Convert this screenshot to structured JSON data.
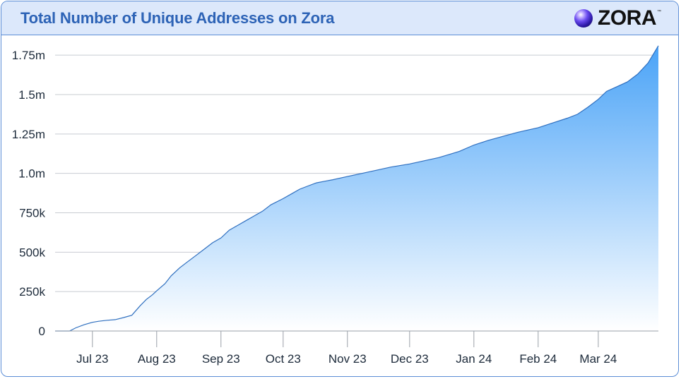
{
  "header": {
    "title": "Total Number of Unique Addresses on Zora",
    "logo_text": "ZORA",
    "logo_tm": "™"
  },
  "colors": {
    "title": "#2d63b6",
    "header_bg": "#dce8fb",
    "border": "#5b8dd6",
    "line": "#2f6fbf",
    "fill_top": "#4aa3f7",
    "fill_bottom": "#ffffff",
    "grid": "#c8ccd2"
  },
  "chart_data": {
    "type": "area",
    "title": "Total Number of Unique Addresses on Zora",
    "xlabel": "",
    "ylabel": "",
    "grid": true,
    "legend": "none",
    "xlim": [
      "2023-06-13",
      "2024-03-30"
    ],
    "ylim": [
      0,
      1800000
    ],
    "yticks": [
      0,
      250000,
      500000,
      750000,
      1000000,
      1250000,
      1500000,
      1750000
    ],
    "ytick_labels": [
      "0",
      "250k",
      "500k",
      "750k",
      "1.0m",
      "1.25m",
      "1.5m",
      "1.75m"
    ],
    "xticks": [
      "2023-07-01",
      "2023-08-01",
      "2023-09-01",
      "2023-10-01",
      "2023-11-01",
      "2023-12-01",
      "2024-01-01",
      "2024-02-01",
      "2024-03-01"
    ],
    "xtick_labels": [
      "Jul 23",
      "Aug 23",
      "Sep 23",
      "Oct 23",
      "Nov 23",
      "Dec 23",
      "Jan 24",
      "Feb 24",
      "Mar 24"
    ],
    "series": [
      {
        "x": [
          "2023-06-13",
          "2023-06-20",
          "2023-06-23",
          "2023-06-27",
          "2023-07-01",
          "2023-07-04",
          "2023-07-08",
          "2023-07-12",
          "2023-07-16",
          "2023-07-20",
          "2023-07-24",
          "2023-07-27",
          "2023-07-30",
          "2023-08-01",
          "2023-08-05",
          "2023-08-08",
          "2023-08-12",
          "2023-08-16",
          "2023-08-20",
          "2023-08-24",
          "2023-08-28",
          "2023-09-01",
          "2023-09-05",
          "2023-09-09",
          "2023-09-13",
          "2023-09-17",
          "2023-09-21",
          "2023-09-25",
          "2023-10-01",
          "2023-10-05",
          "2023-10-09",
          "2023-10-13",
          "2023-10-17",
          "2023-10-21",
          "2023-10-25",
          "2023-11-01",
          "2023-11-08",
          "2023-11-15",
          "2023-11-22",
          "2023-12-01",
          "2023-12-08",
          "2023-12-15",
          "2023-12-20",
          "2023-12-25",
          "2024-01-01",
          "2024-01-08",
          "2024-01-15",
          "2024-01-22",
          "2024-02-01",
          "2024-02-08",
          "2024-02-15",
          "2024-02-20",
          "2024-02-25",
          "2024-03-01",
          "2024-03-05",
          "2024-03-10",
          "2024-03-15",
          "2024-03-20",
          "2024-03-25",
          "2024-03-30"
        ],
        "values": [
          0,
          0,
          20000,
          40000,
          55000,
          62000,
          68000,
          72000,
          85000,
          100000,
          160000,
          200000,
          230000,
          255000,
          300000,
          350000,
          400000,
          440000,
          480000,
          520000,
          560000,
          590000,
          640000,
          670000,
          700000,
          730000,
          760000,
          800000,
          840000,
          870000,
          900000,
          920000,
          940000,
          950000,
          960000,
          980000,
          1000000,
          1020000,
          1040000,
          1060000,
          1080000,
          1100000,
          1120000,
          1140000,
          1180000,
          1210000,
          1235000,
          1260000,
          1290000,
          1320000,
          1350000,
          1375000,
          1420000,
          1470000,
          1520000,
          1550000,
          1580000,
          1630000,
          1700000,
          1810000
        ]
      }
    ]
  }
}
